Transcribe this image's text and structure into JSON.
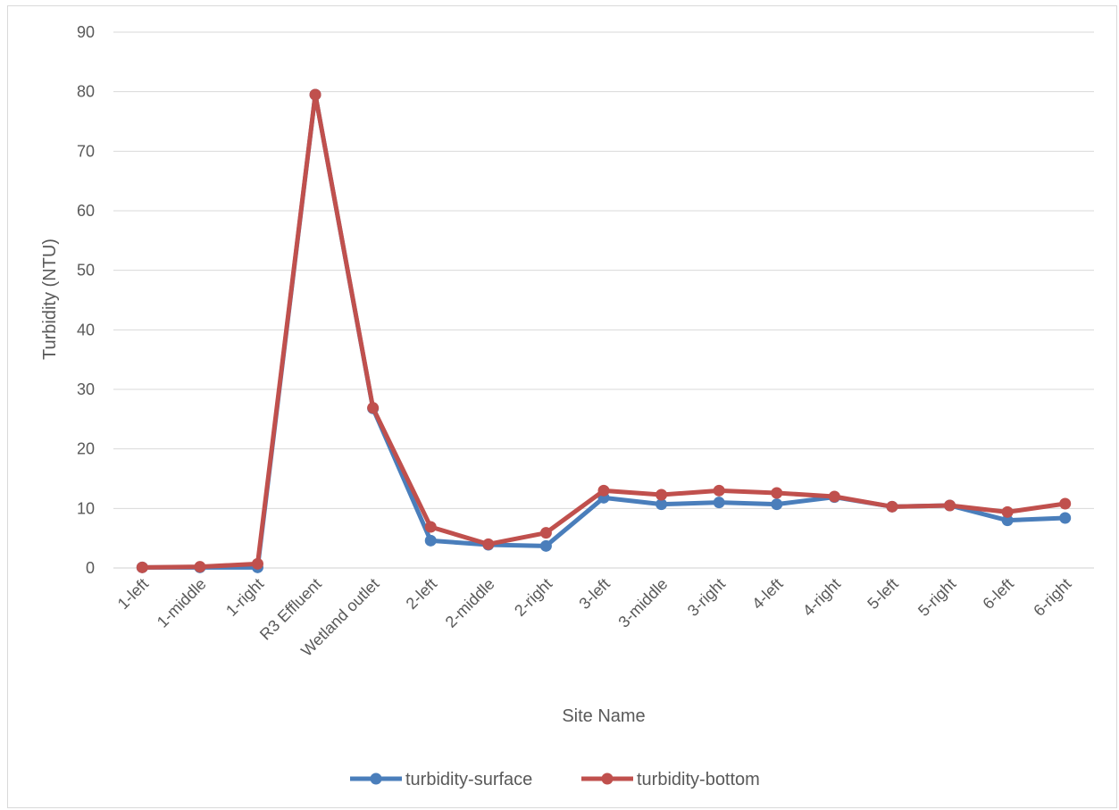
{
  "chart_data": {
    "type": "line",
    "title": "",
    "xlabel": "Site Name",
    "ylabel": "Turbidity (NTU)",
    "ylim": [
      0,
      90
    ],
    "yticks": [
      0,
      10,
      20,
      30,
      40,
      50,
      60,
      70,
      80,
      90
    ],
    "grid": true,
    "legend_position": "bottom",
    "categories": [
      "1-left",
      "1-middle",
      "1-right",
      "R3 Effluent",
      "Wetland outlet",
      "2-left",
      "2-middle",
      "2-right",
      "3-left",
      "3-middle",
      "3-right",
      "4-left",
      "4-right",
      "5-left",
      "5-right",
      "6-left",
      "6-right"
    ],
    "series": [
      {
        "name": "turbidity-surface",
        "color": "#4a7ebb",
        "values": [
          0.1,
          0.1,
          0.1,
          79.5,
          26.8,
          4.6,
          3.9,
          3.7,
          11.8,
          10.7,
          11.0,
          10.7,
          11.9,
          10.3,
          10.5,
          8.0,
          8.4
        ]
      },
      {
        "name": "turbidity-bottom",
        "color": "#c0504d",
        "values": [
          0.1,
          0.2,
          0.7,
          79.5,
          26.9,
          6.9,
          4.0,
          5.9,
          13.0,
          12.3,
          13.0,
          12.6,
          12.0,
          10.3,
          10.5,
          9.4,
          10.8
        ]
      }
    ]
  }
}
